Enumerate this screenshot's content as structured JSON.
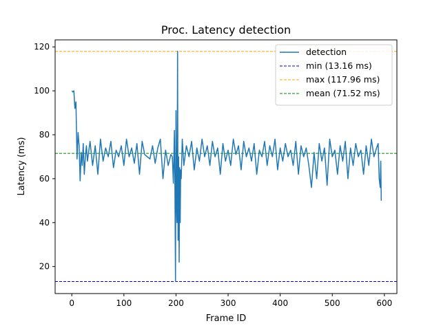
{
  "chart_data": {
    "type": "line",
    "title": "Proc. Latency detection",
    "xlabel": "Frame ID",
    "ylabel": "Latency (ms)",
    "xlim": [
      -32,
      624
    ],
    "ylim": [
      7.7,
      123.2
    ],
    "xticks": [
      0,
      100,
      200,
      300,
      400,
      500,
      600
    ],
    "yticks": [
      20,
      40,
      60,
      80,
      100,
      120
    ],
    "grid": false,
    "legend_position": "top-right",
    "series": [
      {
        "name": "detection",
        "color": "#1f77b4",
        "style": "solid",
        "x": [
          0,
          2,
          4,
          6,
          8,
          10,
          12,
          14,
          16,
          18,
          20,
          22,
          24,
          26,
          28,
          30,
          35,
          40,
          45,
          50,
          55,
          60,
          65,
          70,
          75,
          80,
          85,
          90,
          95,
          100,
          105,
          110,
          115,
          120,
          125,
          130,
          135,
          140,
          145,
          150,
          155,
          160,
          165,
          170,
          175,
          180,
          185,
          190,
          193,
          195,
          197,
          198,
          199,
          200,
          201,
          202,
          203,
          204,
          205,
          206,
          207,
          208,
          209,
          210,
          212,
          215,
          220,
          225,
          230,
          235,
          240,
          245,
          250,
          255,
          260,
          265,
          270,
          275,
          280,
          285,
          290,
          295,
          300,
          305,
          310,
          315,
          320,
          325,
          330,
          335,
          340,
          345,
          350,
          355,
          360,
          365,
          370,
          375,
          380,
          385,
          390,
          395,
          400,
          405,
          410,
          415,
          420,
          425,
          430,
          435,
          440,
          445,
          450,
          455,
          460,
          465,
          470,
          475,
          480,
          485,
          490,
          495,
          500,
          505,
          510,
          515,
          520,
          525,
          530,
          535,
          540,
          545,
          550,
          555,
          560,
          565,
          570,
          575,
          580,
          585,
          588,
          590,
          592,
          593,
          594
        ],
        "values": [
          100,
          99.5,
          100,
          92,
          95,
          69,
          81,
          75,
          59,
          72,
          66,
          76,
          62,
          70,
          75,
          68,
          77,
          66,
          75,
          62,
          78,
          68,
          74,
          70,
          77,
          65,
          73,
          70,
          75,
          66,
          78,
          70,
          74,
          67,
          76,
          62,
          77,
          71,
          70,
          69,
          75,
          67,
          74,
          78,
          60,
          73,
          66,
          71,
          70,
          58,
          82,
          55,
          13.2,
          91,
          48,
          40,
          118,
          32,
          70,
          22,
          65,
          40,
          64,
          60,
          78,
          66,
          75,
          70,
          77,
          64,
          74,
          68,
          78,
          70,
          75,
          66,
          77,
          70,
          74,
          62,
          76,
          68,
          73,
          66,
          78,
          71,
          75,
          64,
          77,
          70,
          74,
          68,
          76,
          62,
          73,
          70,
          77,
          66,
          75,
          70,
          78,
          64,
          74,
          68,
          76,
          70,
          73,
          66,
          77,
          62,
          75,
          70,
          74,
          66,
          56,
          72,
          60,
          76,
          68,
          74,
          57,
          78,
          70,
          73,
          62,
          75,
          68,
          77,
          60,
          74,
          66,
          76,
          70,
          73,
          62,
          75,
          66,
          78,
          70,
          74,
          76,
          60,
          56,
          68,
          50
        ]
      }
    ],
    "reference_lines": [
      {
        "name": "min (13.16 ms)",
        "value": 13.16,
        "color": "#0000cc",
        "style": "dashed"
      },
      {
        "name": "max (117.96 ms)",
        "value": 117.96,
        "color": "#ffa500",
        "style": "dashed"
      },
      {
        "name": "mean (71.52 ms)",
        "value": 71.52,
        "color": "#008000",
        "style": "dashed"
      }
    ]
  }
}
